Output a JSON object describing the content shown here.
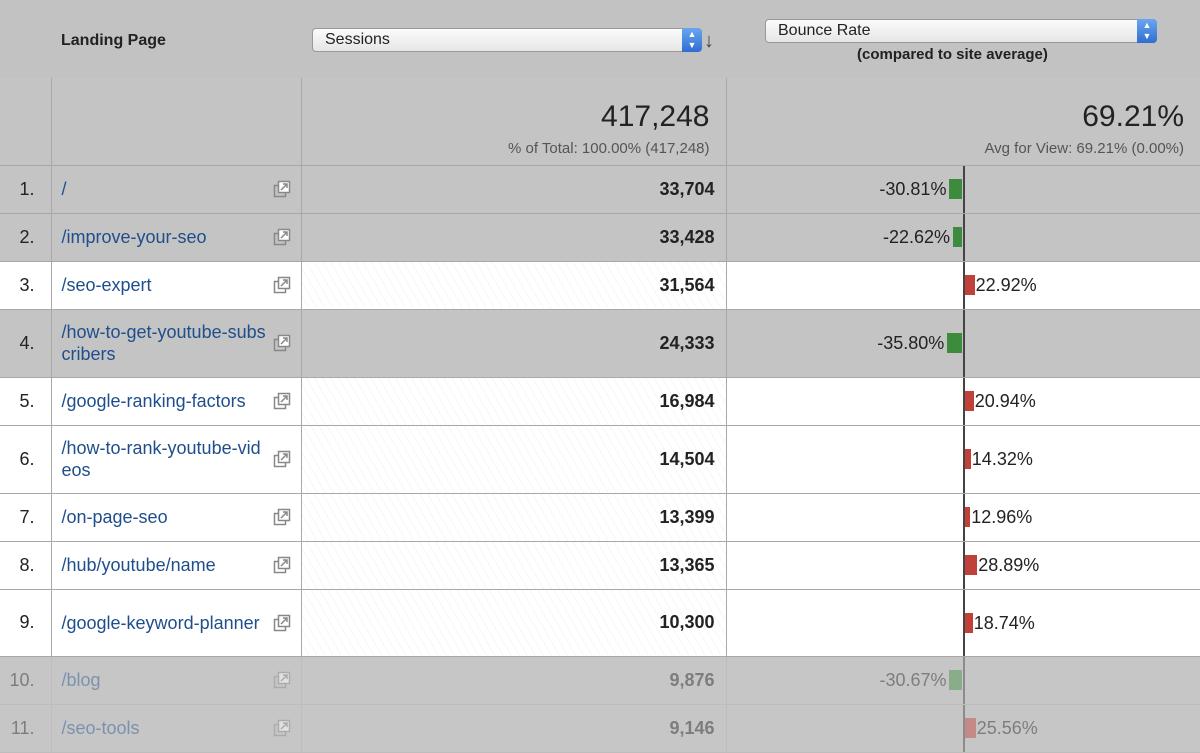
{
  "header": {
    "landing_label": "Landing Page",
    "metric1": "Sessions",
    "metric2": "Bounce Rate",
    "compare_label": "(compared to site average)"
  },
  "totals": {
    "sessions": "417,248",
    "sessions_sub": "% of Total: 100.00% (417,248)",
    "bounce": "69.21%",
    "bounce_sub": "Avg for View: 69.21% (0.00%)"
  },
  "colors": {
    "negative": "#3d8b3d",
    "positive": "#c0403a",
    "link": "#1f4e8c"
  },
  "rows": [
    {
      "num": "1.",
      "page": "/",
      "sessions": "33,704",
      "delta": -30.81,
      "delta_label": "-30.81%"
    },
    {
      "num": "2.",
      "page": "/improve-your-seo",
      "sessions": "33,428",
      "delta": -22.62,
      "delta_label": "-22.62%"
    },
    {
      "num": "3.",
      "page": "/seo-expert",
      "sessions": "31,564",
      "delta": 22.92,
      "delta_label": "22.92%"
    },
    {
      "num": "4.",
      "page": "/how-to-get-youtube-subscribers",
      "sessions": "24,333",
      "delta": -35.8,
      "delta_label": "-35.80%"
    },
    {
      "num": "5.",
      "page": "/google-ranking-factors",
      "sessions": "16,984",
      "delta": 20.94,
      "delta_label": "20.94%"
    },
    {
      "num": "6.",
      "page": "/how-to-rank-youtube-videos",
      "sessions": "14,504",
      "delta": 14.32,
      "delta_label": "14.32%"
    },
    {
      "num": "7.",
      "page": "/on-page-seo",
      "sessions": "13,399",
      "delta": 12.96,
      "delta_label": "12.96%"
    },
    {
      "num": "8.",
      "page": "/hub/youtube/name",
      "sessions": "13,365",
      "delta": 28.89,
      "delta_label": "28.89%"
    },
    {
      "num": "9.",
      "page": "/google-keyword-planner",
      "sessions": "10,300",
      "delta": 18.74,
      "delta_label": "18.74%"
    },
    {
      "num": "10.",
      "page": "/blog",
      "sessions": "9,876",
      "delta": -30.67,
      "delta_label": "-30.67%"
    },
    {
      "num": "11.",
      "page": "/seo-tools",
      "sessions": "9,146",
      "delta": 25.56,
      "delta_label": "25.56%"
    }
  ]
}
